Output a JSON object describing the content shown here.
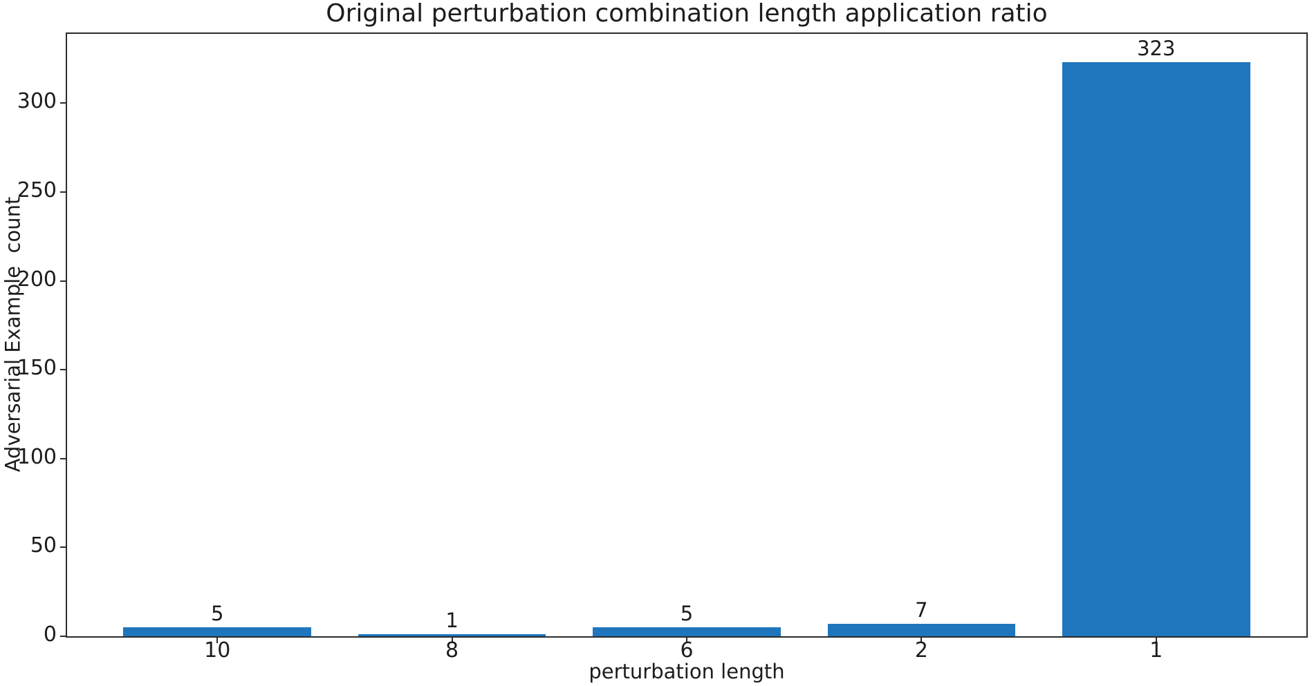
{
  "figure": {
    "background": "#ffffff"
  },
  "chart_data": {
    "type": "bar",
    "title": "Original perturbation combination length application ratio",
    "xlabel": "perturbation length",
    "ylabel": "Adversarial Example  count",
    "categories": [
      "10",
      "8",
      "6",
      "2",
      "1"
    ],
    "values": [
      5,
      1,
      5,
      7,
      323
    ],
    "bar_value_labels": [
      "5",
      "1",
      "5",
      "7",
      "323"
    ],
    "yticks": [
      0,
      50,
      100,
      150,
      200,
      250,
      300
    ],
    "ylim": [
      0,
      339
    ],
    "grid": false,
    "legend": null,
    "bar_color": "#2076bd",
    "axis_color": "#2b2b2b",
    "text_color": "#1c1c1c"
  }
}
